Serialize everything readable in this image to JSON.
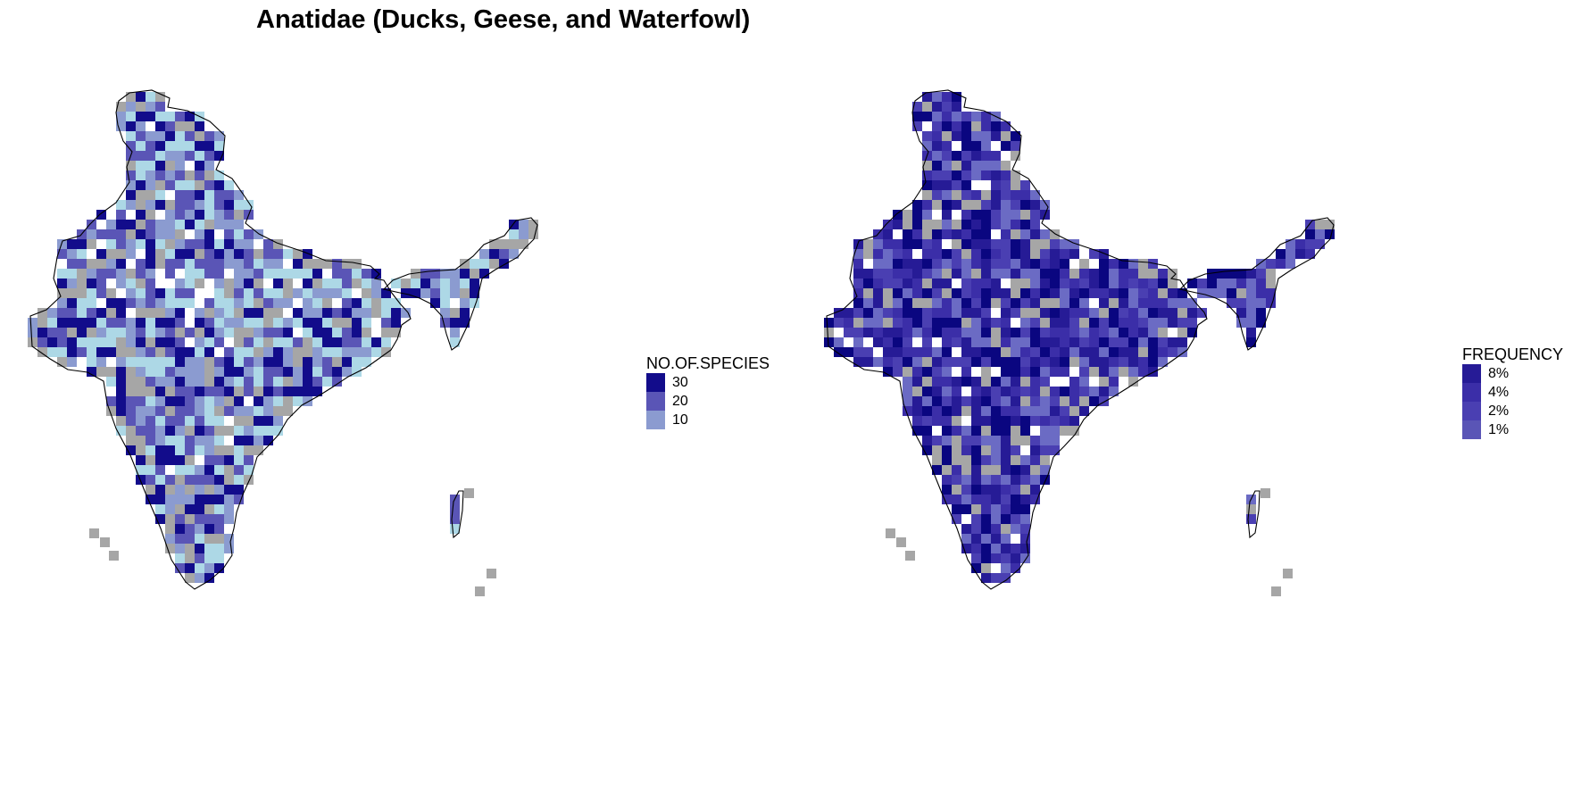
{
  "title": "Anatidae (Ducks, Geese, and Waterfowl)",
  "colors": {
    "no_data": "#a6a6a6",
    "species_scale": [
      "#add8e6",
      "#8b9bd0",
      "#5a55b6",
      "#120c8b"
    ],
    "frequency_scale": [
      "#6b6bc4",
      "#4a3fb2",
      "#3b2ea8",
      "#261b96",
      "#0a0680"
    ],
    "border": "#000000"
  },
  "species_map": {
    "legend_title": "NO.OF.SPECIES",
    "legend_items": [
      {
        "label": "30",
        "color": "#120c8b"
      },
      {
        "label": "20",
        "color": "#5a55b6"
      },
      {
        "label": "10",
        "color": "#8b9bd0"
      }
    ]
  },
  "frequency_map": {
    "legend_title": "FREQUENCY",
    "legend_items": [
      {
        "label": "8%",
        "color": "#261b96"
      },
      {
        "label": "4%",
        "color": "#3b2ea8"
      },
      {
        "label": "2%",
        "color": "#4a3fb2"
      },
      {
        "label": "1%",
        "color": "#5a55b6"
      }
    ]
  }
}
